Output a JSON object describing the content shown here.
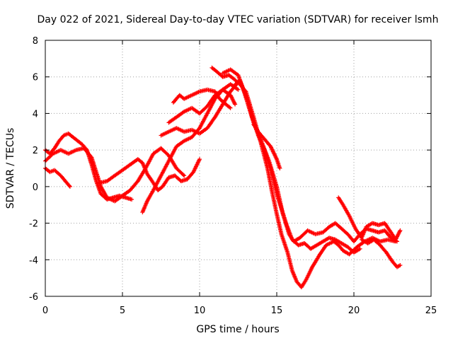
{
  "chart_data": {
    "type": "scatter",
    "title": "Day 022 of 2021, Sidereal Day-to-day VTEC variation (SDTVAR) for receiver lsmh",
    "xlabel": "GPS time / hours",
    "ylabel": "SDTVAR / TECUs",
    "xlim": [
      0,
      25
    ],
    "ylim": [
      -6,
      8
    ],
    "x_ticks": [
      0,
      5,
      10,
      15,
      20,
      25
    ],
    "y_ticks": [
      -6,
      -4,
      -2,
      0,
      2,
      4,
      6,
      8
    ],
    "x_tick_labels": [
      "0",
      "5",
      "10",
      "15",
      "20",
      "25"
    ],
    "y_tick_labels": [
      "-6",
      "-4",
      "-2",
      "0",
      "2",
      "4",
      "6",
      "8"
    ],
    "grid": true,
    "marker": "plus",
    "marker_color": "#ff0000",
    "series": [
      {
        "x": [
          0.0,
          0.3,
          0.6,
          0.9,
          1.2,
          1.5,
          1.8,
          2.1,
          2.4,
          2.7,
          3.0,
          3.3,
          3.6,
          4.0,
          4.4,
          4.8,
          5.2,
          5.6
        ],
        "y": [
          2.0,
          1.8,
          2.1,
          2.5,
          2.8,
          2.9,
          2.7,
          2.5,
          2.3,
          2.0,
          1.2,
          0.3,
          -0.4,
          -0.7,
          -0.6,
          -0.5,
          -0.6,
          -0.7
        ]
      },
      {
        "x": [
          0.0,
          0.5,
          1.0,
          1.5,
          2.0,
          2.5,
          3.0,
          3.3,
          3.6,
          4.0,
          4.5,
          5.0,
          5.5,
          6.0,
          6.5,
          7.0,
          7.5,
          8.0,
          8.5,
          9.0
        ],
        "y": [
          1.4,
          1.8,
          2.0,
          1.8,
          2.0,
          2.1,
          1.6,
          0.8,
          0.0,
          -0.6,
          -0.8,
          -0.5,
          -0.2,
          0.3,
          1.0,
          1.8,
          2.1,
          1.7,
          1.0,
          0.6
        ]
      },
      {
        "x": [
          0.0,
          0.3,
          0.6,
          1.0,
          1.3,
          1.6
        ],
        "y": [
          1.0,
          0.8,
          0.9,
          0.6,
          0.3,
          0.0
        ]
      },
      {
        "x": [
          3.5,
          4.0,
          4.5,
          5.0,
          5.5,
          6.0,
          6.3,
          6.6,
          7.0,
          7.3,
          7.6,
          8.0,
          8.4,
          8.8,
          9.2,
          9.6,
          10.0
        ],
        "y": [
          0.2,
          0.3,
          0.6,
          0.9,
          1.2,
          1.5,
          1.3,
          0.7,
          0.2,
          -0.2,
          0.0,
          0.5,
          0.6,
          0.3,
          0.4,
          0.8,
          1.5
        ]
      },
      {
        "x": [
          6.3,
          6.6,
          7.0,
          7.5,
          8.0,
          8.5,
          9.0,
          9.5,
          10.0,
          10.5,
          11.0,
          11.5,
          12.0,
          12.5
        ],
        "y": [
          -1.4,
          -0.8,
          -0.2,
          0.6,
          1.4,
          2.2,
          2.5,
          2.7,
          3.2,
          4.0,
          4.8,
          5.3,
          5.6,
          5.3
        ]
      },
      {
        "x": [
          7.5,
          8.0,
          8.5,
          9.0,
          9.5,
          10.0,
          10.5,
          11.0,
          11.5,
          12.0,
          12.4
        ],
        "y": [
          2.8,
          3.0,
          3.2,
          3.0,
          3.1,
          2.9,
          3.2,
          3.8,
          4.5,
          5.2,
          5.6
        ]
      },
      {
        "x": [
          8.0,
          8.5,
          9.0,
          9.5,
          10.0,
          10.5,
          11.0,
          11.5,
          12.0,
          12.3
        ],
        "y": [
          3.5,
          3.8,
          4.1,
          4.3,
          4.0,
          4.4,
          5.0,
          5.3,
          5.0,
          4.5
        ]
      },
      {
        "x": [
          8.3,
          8.7,
          9.0,
          9.5,
          10.0,
          10.5,
          11.0,
          11.3,
          11.7,
          12.0
        ],
        "y": [
          4.6,
          5.0,
          4.8,
          5.0,
          5.2,
          5.3,
          5.2,
          4.8,
          4.5,
          4.3
        ]
      },
      {
        "x": [
          10.8,
          11.1,
          11.5,
          11.9,
          12.2,
          12.6,
          13.0,
          13.5,
          14.0,
          14.4,
          14.7,
          15.0,
          15.3,
          15.7,
          16.0,
          16.3,
          16.6,
          16.9,
          17.3,
          17.8,
          18.2,
          18.7,
          19.0,
          19.3,
          19.7,
          20.2,
          20.7,
          21.2,
          21.7,
          22.2,
          22.7
        ],
        "y": [
          6.5,
          6.3,
          6.0,
          6.1,
          5.9,
          5.6,
          5.2,
          3.8,
          2.3,
          1.0,
          -0.3,
          -1.5,
          -2.6,
          -3.6,
          -4.6,
          -5.2,
          -5.5,
          -5.1,
          -4.4,
          -3.7,
          -3.2,
          -3.0,
          -3.2,
          -3.5,
          -3.7,
          -3.3,
          -3.0,
          -2.8,
          -3.0,
          -2.9,
          -3.0
        ]
      },
      {
        "x": [
          11.5,
          12.0,
          12.5,
          12.8,
          13.1,
          13.5,
          14.0,
          14.5,
          15.0,
          15.4,
          15.8,
          16.1,
          16.5,
          17.0,
          17.5,
          18.0,
          18.4,
          18.8,
          19.2,
          19.6,
          20.0,
          20.4,
          20.8,
          21.2,
          21.6,
          22.0,
          22.4,
          22.8
        ],
        "y": [
          6.2,
          6.4,
          6.1,
          5.4,
          4.6,
          3.5,
          2.5,
          1.4,
          0.0,
          -1.5,
          -2.6,
          -3.0,
          -2.8,
          -2.4,
          -2.6,
          -2.5,
          -2.2,
          -2.0,
          -2.3,
          -2.6,
          -3.0,
          -2.6,
          -2.3,
          -2.4,
          -2.5,
          -2.4,
          -2.8,
          -3.0
        ]
      },
      {
        "x": [
          12.2,
          12.6,
          13.0,
          13.4,
          13.8,
          14.2,
          14.6,
          15.0,
          15.3,
          15.6,
          16.0,
          16.4,
          16.8,
          17.2,
          17.6,
          18.0,
          18.4,
          18.8,
          19.2,
          19.6,
          20.0,
          20.4
        ],
        "y": [
          5.5,
          5.8,
          5.0,
          3.8,
          2.8,
          2.0,
          1.0,
          -0.4,
          -1.2,
          -2.0,
          -2.9,
          -3.2,
          -3.1,
          -3.4,
          -3.2,
          -3.0,
          -2.8,
          -2.9,
          -3.1,
          -3.3,
          -3.6,
          -3.4
        ]
      },
      {
        "x": [
          13.5,
          13.8,
          14.2,
          14.6,
          15.0,
          15.2
        ],
        "y": [
          3.4,
          3.0,
          2.6,
          2.2,
          1.5,
          1.0
        ]
      },
      {
        "x": [
          19.0,
          19.3,
          19.7,
          20.1,
          20.5,
          20.8,
          21.2,
          21.6,
          22.0,
          22.4,
          22.7,
          23.0
        ],
        "y": [
          -0.6,
          -1.0,
          -1.6,
          -2.3,
          -2.8,
          -2.2,
          -2.0,
          -2.1,
          -2.0,
          -2.5,
          -2.9,
          -2.4
        ]
      },
      {
        "x": [
          20.5,
          20.9,
          21.3,
          21.7,
          22.1,
          22.5,
          22.8,
          23.0
        ],
        "y": [
          -2.9,
          -3.1,
          -2.9,
          -3.2,
          -3.6,
          -4.1,
          -4.4,
          -4.3
        ]
      }
    ]
  }
}
